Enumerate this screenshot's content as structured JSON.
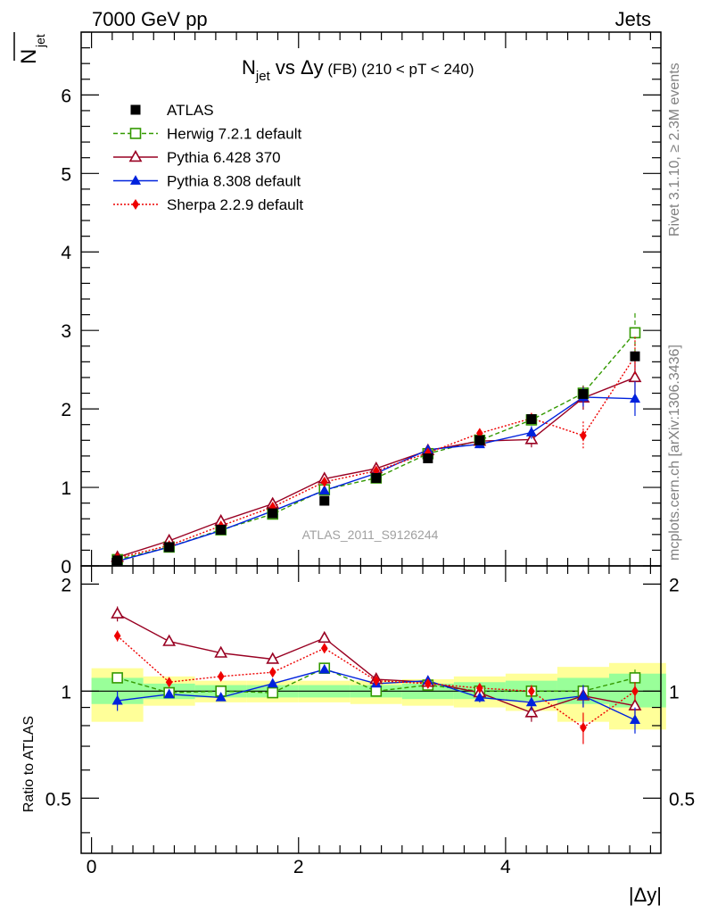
{
  "header": {
    "left": "7000 GeV pp",
    "right": "Jets",
    "ylabel_main": "N",
    "ylabel_main_sub": "jet",
    "title_prefix": "N",
    "title_sub": "jet",
    "title_mid": " vs Δy",
    "title_fb": " (FB) ",
    "title_range": "(210 < pT < 240)",
    "watermark": "ATLAS_2011_S9126244",
    "side_top": "Rivet 3.1.10, ≥ 2.3M events",
    "side_bottom": "mcplots.cern.ch [arXiv:1306.3436]",
    "ratio_ylabel": "Ratio to ATLAS",
    "xlabel": "|Δy|"
  },
  "chart_data": [
    {
      "type": "scatter",
      "panel": "main",
      "xlim": [
        -0.1,
        5.5
      ],
      "ylim": [
        0,
        6.8
      ],
      "xticks": [
        0,
        2,
        4
      ],
      "yticks": [
        0,
        1,
        2,
        3,
        4,
        5,
        6
      ],
      "xbins": [
        0.25,
        0.75,
        1.25,
        1.75,
        2.25,
        2.75,
        3.25,
        3.75,
        4.25,
        4.75,
        5.25
      ],
      "legend_position": "top-left",
      "series": [
        {
          "name": "ATLAS",
          "color": "#000000",
          "marker": "square-filled",
          "line": "none",
          "values": [
            0.07,
            0.24,
            0.46,
            0.67,
            0.83,
            1.12,
            1.37,
            1.6,
            1.87,
            2.19,
            2.67
          ]
        },
        {
          "name": "Herwig 7.2.1 default",
          "color": "#339900",
          "marker": "square-open",
          "line": "dashed",
          "values": [
            0.08,
            0.24,
            0.46,
            0.66,
            0.97,
            1.12,
            1.43,
            1.6,
            1.86,
            2.2,
            2.97
          ],
          "errors": [
            0.01,
            0.01,
            0.01,
            0.01,
            0.02,
            0.02,
            0.04,
            0.05,
            0.06,
            0.1,
            0.25
          ]
        },
        {
          "name": "Pythia 6.428 370",
          "color": "#990022",
          "marker": "triangle-open",
          "line": "solid",
          "values": [
            0.11,
            0.32,
            0.57,
            0.79,
            1.11,
            1.24,
            1.47,
            1.59,
            1.61,
            2.14,
            2.4
          ],
          "errors": [
            0.01,
            0.01,
            0.01,
            0.01,
            0.02,
            0.03,
            0.04,
            0.05,
            0.1,
            0.15,
            0.25
          ]
        },
        {
          "name": "Pythia 8.308 default",
          "color": "#0022dd",
          "marker": "triangle-filled",
          "line": "solid",
          "values": [
            0.06,
            0.24,
            0.45,
            0.7,
            0.96,
            1.18,
            1.48,
            1.55,
            1.7,
            2.15,
            2.13
          ],
          "errors": [
            0.01,
            0.01,
            0.01,
            0.01,
            0.02,
            0.03,
            0.04,
            0.05,
            0.08,
            0.12,
            0.22
          ]
        },
        {
          "name": "Sherpa 2.2.9 default",
          "color": "#ee0000",
          "marker": "diamond-filled",
          "line": "dotted",
          "values": [
            0.1,
            0.26,
            0.51,
            0.75,
            1.07,
            1.21,
            1.44,
            1.69,
            1.88,
            1.66,
            2.67
          ],
          "errors": [
            0.01,
            0.01,
            0.01,
            0.01,
            0.02,
            0.03,
            0.04,
            0.05,
            0.07,
            0.18,
            0.25
          ]
        }
      ]
    },
    {
      "type": "scatter",
      "panel": "ratio",
      "xlim": [
        -0.1,
        5.5
      ],
      "ylim": [
        0.35,
        2.25
      ],
      "yticks": [
        0.5,
        1,
        2
      ],
      "ylabel": "Ratio to ATLAS",
      "reference_line": 1,
      "bins": [
        [
          0.0,
          0.5
        ],
        [
          0.5,
          1.0
        ],
        [
          1.0,
          1.5
        ],
        [
          1.5,
          2.0
        ],
        [
          2.0,
          2.5
        ],
        [
          2.5,
          3.0
        ],
        [
          3.0,
          3.5
        ],
        [
          3.5,
          4.0
        ],
        [
          4.0,
          4.5
        ],
        [
          4.5,
          5.0
        ],
        [
          5.0,
          5.55
        ]
      ],
      "band_green": [
        [
          0.92,
          1.09
        ],
        [
          0.95,
          1.05
        ],
        [
          0.96,
          1.04
        ],
        [
          0.96,
          1.04
        ],
        [
          0.96,
          1.04
        ],
        [
          0.96,
          1.04
        ],
        [
          0.95,
          1.05
        ],
        [
          0.95,
          1.06
        ],
        [
          0.94,
          1.07
        ],
        [
          0.92,
          1.09
        ],
        [
          0.9,
          1.12
        ]
      ],
      "band_yellow": [
        [
          0.82,
          1.16
        ],
        [
          0.91,
          1.1
        ],
        [
          0.93,
          1.07
        ],
        [
          0.93,
          1.07
        ],
        [
          0.93,
          1.07
        ],
        [
          0.92,
          1.07
        ],
        [
          0.91,
          1.08
        ],
        [
          0.9,
          1.1
        ],
        [
          0.88,
          1.12
        ],
        [
          0.82,
          1.17
        ],
        [
          0.78,
          1.2
        ]
      ],
      "series": [
        {
          "name": "Herwig 7.2.1 default",
          "values": [
            1.09,
            0.99,
            1.0,
            0.99,
            1.16,
            1.0,
            1.04,
            1.0,
            1.0,
            1.0,
            1.09
          ],
          "errors": [
            0.03,
            0.02,
            0.02,
            0.02,
            0.02,
            0.02,
            0.02,
            0.02,
            0.03,
            0.04,
            0.06
          ]
        },
        {
          "name": "Pythia 6.428 370",
          "values": [
            1.65,
            1.38,
            1.28,
            1.23,
            1.41,
            1.08,
            1.06,
            0.99,
            0.87,
            0.97,
            0.91
          ],
          "errors": [
            0.08,
            0.03,
            0.02,
            0.02,
            0.02,
            0.02,
            0.02,
            0.03,
            0.05,
            0.07,
            0.06
          ]
        },
        {
          "name": "Pythia 8.308 default",
          "values": [
            0.94,
            0.98,
            0.96,
            1.05,
            1.15,
            1.05,
            1.07,
            0.96,
            0.93,
            0.97,
            0.83
          ],
          "errors": [
            0.06,
            0.02,
            0.02,
            0.02,
            0.02,
            0.02,
            0.03,
            0.03,
            0.05,
            0.07,
            0.07
          ]
        },
        {
          "name": "Sherpa 2.2.9 default",
          "values": [
            1.43,
            1.06,
            1.1,
            1.13,
            1.32,
            1.07,
            1.05,
            1.02,
            1.0,
            0.79,
            1.0
          ],
          "errors": [
            0.05,
            0.02,
            0.02,
            0.02,
            0.02,
            0.02,
            0.02,
            0.03,
            0.04,
            0.08,
            0.06
          ]
        }
      ]
    }
  ]
}
